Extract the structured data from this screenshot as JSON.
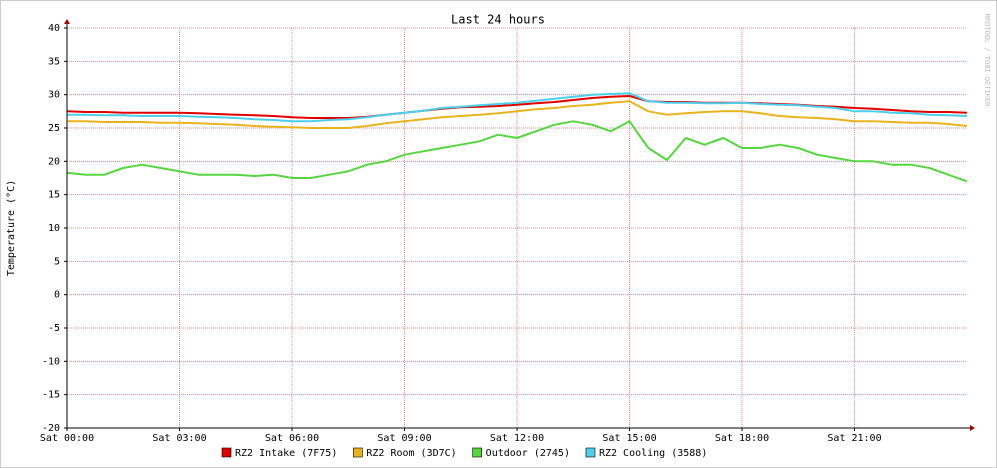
{
  "chart_data": {
    "type": "line",
    "title": "Last 24 hours",
    "y_label": "Temperature (°C)",
    "watermark": "RRDTOOL / TOBI OETIKER",
    "x": [
      0,
      0.5,
      1,
      1.5,
      2,
      2.5,
      3,
      3.5,
      4,
      4.5,
      5,
      5.5,
      6,
      6.5,
      7,
      7.5,
      8,
      8.5,
      9,
      9.5,
      10,
      10.5,
      11,
      11.5,
      12,
      12.5,
      13,
      13.5,
      14,
      14.5,
      15,
      15.5,
      16,
      16.5,
      17,
      17.5,
      18,
      18.5,
      19,
      19.5,
      20,
      20.5,
      21,
      21.5,
      22,
      22.5,
      23,
      23.5,
      24
    ],
    "xlim": [
      0,
      24
    ],
    "xticks": [
      {
        "value": 0,
        "label": "Sat 00:00"
      },
      {
        "value": 3,
        "label": "Sat 03:00"
      },
      {
        "value": 6,
        "label": "Sat 06:00"
      },
      {
        "value": 9,
        "label": "Sat 09:00"
      },
      {
        "value": 12,
        "label": "Sat 12:00"
      },
      {
        "value": 15,
        "label": "Sat 15:00"
      },
      {
        "value": 18,
        "label": "Sat 18:00"
      },
      {
        "value": 21,
        "label": "Sat 21:00"
      }
    ],
    "ylim": [
      -20,
      40
    ],
    "yticks": [
      -20,
      -15,
      -10,
      -5,
      0,
      5,
      10,
      15,
      20,
      25,
      30,
      35,
      40
    ],
    "grid": true,
    "series": [
      {
        "name": "RZ2 Intake (7F75)",
        "color": "#e00000",
        "values": [
          27.5,
          27.4,
          27.4,
          27.3,
          27.3,
          27.3,
          27.3,
          27.2,
          27.1,
          27.0,
          26.9,
          26.8,
          26.6,
          26.5,
          26.5,
          26.5,
          26.7,
          27.0,
          27.3,
          27.6,
          27.9,
          28.1,
          28.2,
          28.3,
          28.5,
          28.7,
          28.9,
          29.2,
          29.5,
          29.7,
          29.8,
          29.0,
          28.9,
          28.9,
          28.8,
          28.8,
          28.8,
          28.7,
          28.6,
          28.5,
          28.3,
          28.2,
          28.0,
          27.9,
          27.7,
          27.5,
          27.4,
          27.4,
          27.3
        ]
      },
      {
        "name": "RZ2 Room (3D7C)",
        "color": "#e8b41c",
        "values": [
          26.0,
          26.0,
          25.9,
          25.9,
          25.9,
          25.8,
          25.8,
          25.7,
          25.6,
          25.5,
          25.3,
          25.2,
          25.1,
          25.0,
          25.0,
          25.0,
          25.3,
          25.7,
          26.0,
          26.3,
          26.6,
          26.8,
          27.0,
          27.2,
          27.5,
          27.8,
          28.0,
          28.3,
          28.5,
          28.8,
          29.0,
          27.5,
          27.0,
          27.2,
          27.4,
          27.5,
          27.5,
          27.2,
          26.8,
          26.6,
          26.5,
          26.3,
          26.0,
          26.0,
          25.9,
          25.8,
          25.8,
          25.6,
          25.3
        ]
      },
      {
        "name": "Outdoor (2745)",
        "color": "#55d640",
        "values": [
          18.3,
          18.0,
          18.0,
          19.0,
          19.5,
          19.0,
          18.5,
          18.0,
          18.0,
          18.0,
          17.8,
          18.0,
          17.5,
          17.5,
          18.0,
          18.5,
          19.5,
          20.0,
          21.0,
          21.5,
          22.0,
          22.5,
          23.0,
          24.0,
          23.5,
          24.5,
          25.5,
          26.0,
          25.5,
          24.5,
          26.0,
          22.0,
          20.2,
          23.5,
          22.5,
          23.5,
          22.0,
          22.0,
          22.5,
          22.0,
          21.0,
          20.5,
          20.0,
          20.0,
          19.5,
          19.5,
          19.0,
          18.0,
          17.0
        ]
      },
      {
        "name": "RZ2 Cooling (3588)",
        "color": "#4ccfea",
        "values": [
          27.0,
          27.0,
          26.9,
          26.9,
          26.8,
          26.8,
          26.8,
          26.7,
          26.6,
          26.5,
          26.3,
          26.2,
          26.0,
          26.0,
          26.2,
          26.3,
          26.6,
          27.0,
          27.3,
          27.6,
          28.0,
          28.2,
          28.4,
          28.6,
          28.8,
          29.1,
          29.4,
          29.7,
          30.0,
          30.1,
          30.2,
          29.0,
          28.8,
          28.8,
          28.7,
          28.7,
          28.8,
          28.6,
          28.5,
          28.4,
          28.2,
          28.0,
          27.5,
          27.5,
          27.3,
          27.2,
          27.0,
          26.9,
          26.8
        ]
      }
    ]
  }
}
